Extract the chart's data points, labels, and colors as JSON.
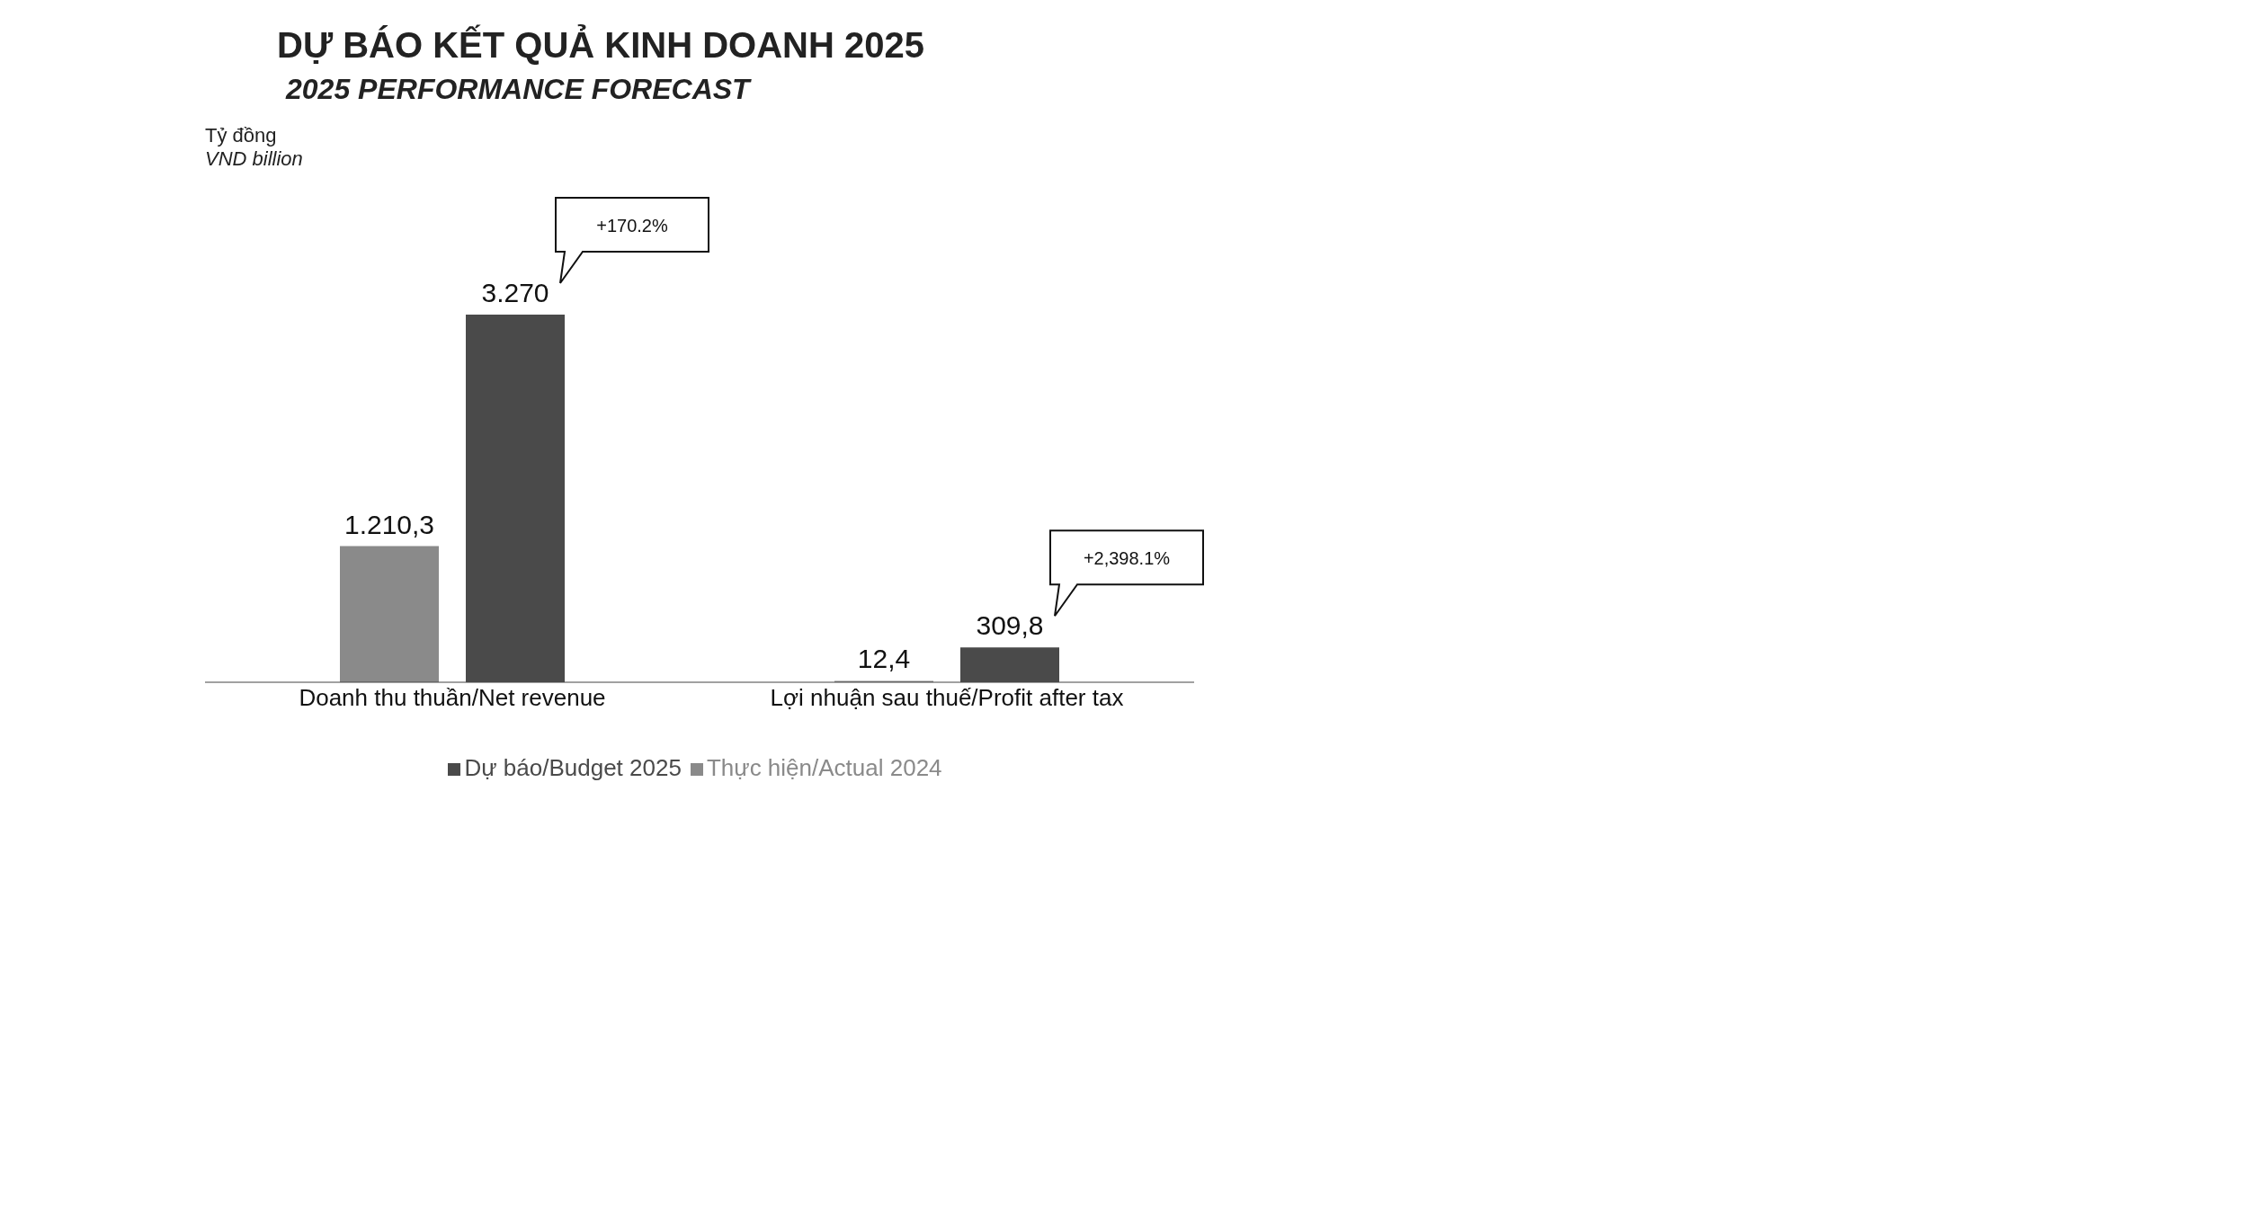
{
  "chart_data": {
    "type": "bar",
    "title": "DỰ BÁO KẾT QUẢ KINH DOANH 2025",
    "subtitle": "2025 PERFORMANCE FORECAST",
    "categories": [
      "Doanh thu thuần/Net revenue",
      "Lợi nhuận sau thuế/Profit after tax"
    ],
    "series": [
      {
        "name": "Thực hiện/Actual 2024",
        "color": "#8a8a8a",
        "values": [
          1210.3,
          12.4
        ],
        "value_labels": [
          "1.210,3",
          "12,4"
        ]
      },
      {
        "name": "Dự báo/Budget 2025",
        "color": "#4a4a4a",
        "values": [
          3270,
          309.8
        ],
        "value_labels": [
          "3.270",
          "309,8"
        ]
      }
    ],
    "annotations": [
      "+170.2%",
      "+2,398.1%",
      "Tỷ đồng",
      "VND billion"
    ],
    "legend": "bottom"
  }
}
